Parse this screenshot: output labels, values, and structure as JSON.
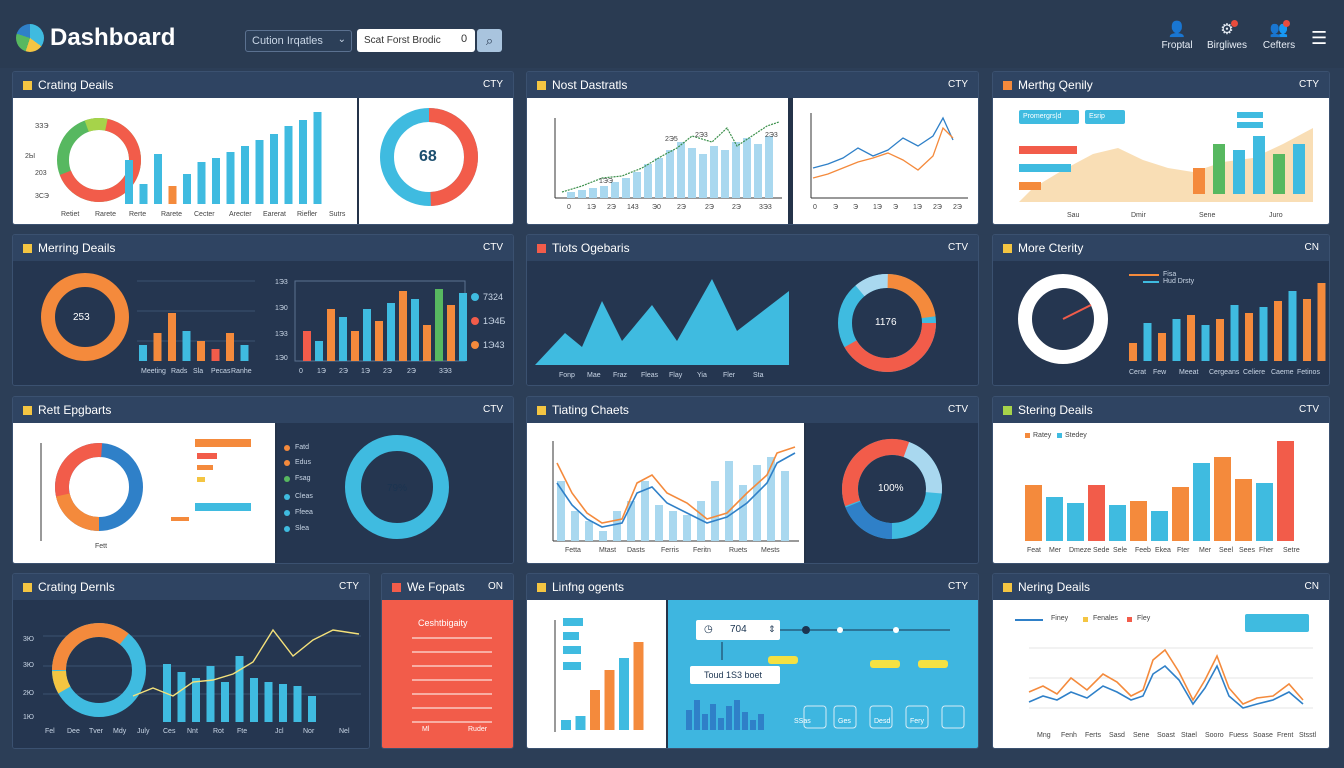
{
  "header": {
    "title": "Dashboard",
    "filter_label": "Cution Irqatles",
    "search_value": "Scat Forst Brodic",
    "search_count": "0",
    "items": [
      {
        "label": "Froptal",
        "icon": "user-icon"
      },
      {
        "label": "Birgliwes",
        "icon": "notifications-icon"
      },
      {
        "label": "Cefters",
        "icon": "people-icon"
      }
    ],
    "menu_icon": "menu-icon"
  },
  "panels": [
    {
      "title": "Crating Deails",
      "tag": "CTY",
      "accent": "#f4c542",
      "center": "68",
      "y_ticks": [
        "ЗЗЭ",
        "2Ы",
        "203",
        "3СЭ"
      ],
      "x_ticks": [
        "Retiet",
        "Rarete",
        "Rerte",
        "Rarete",
        "Cecter",
        "Arecter",
        "Earerat",
        "Riefler",
        "Sutrs"
      ]
    },
    {
      "title": "Nost Dastratls",
      "tag": "CTY",
      "accent": "#f4c542",
      "x_ticks": [
        "0",
        "1Э",
        "2Э",
        "143",
        "Э0",
        "2Э",
        "2Э",
        "2Э",
        "3Э3"
      ],
      "x_ticks2": [
        "0",
        "Э",
        "Э",
        "1Э",
        "Э",
        "1Э",
        "2Э",
        "2Э"
      ],
      "peaks": [
        "2Э5",
        "2Э3",
        "1ЭЭ",
        "2Э3"
      ]
    },
    {
      "title": "Merthg Qenily",
      "tag": "CTY",
      "accent": "#f48a3c",
      "legend": [
        "Promergrs|d",
        "Esrip"
      ],
      "x_ticks": [
        "Sau",
        "Dmir",
        "Sene",
        "Juro"
      ]
    },
    {
      "title": "Merring Deails",
      "tag": "CTV",
      "accent": "#f4c542",
      "center": "253",
      "x_ticks": [
        "Meeting",
        "Rads",
        "Sla",
        "Pecas",
        "Ranhe"
      ],
      "x_ticks2": [
        "0",
        "1Э",
        "2Э",
        "1Э",
        "2Э",
        "2Э",
        "3Э3"
      ],
      "y_ticks": [
        "1Э3",
        "1Э0",
        "1Э3",
        "1Э0"
      ],
      "right_vals": [
        "7324",
        "1Э4Б",
        "1Э43"
      ]
    },
    {
      "title": "Tiots Ogebaris",
      "tag": "CTV",
      "accent": "#f25c4a",
      "center": "1176",
      "x_ticks": [
        "Fonp",
        "Mae",
        "Fraz",
        "Fleas",
        "Flay",
        "Yia",
        "Fler",
        "Sta"
      ]
    },
    {
      "title": "More Cterity",
      "tag": "CN",
      "accent": "#f4c542",
      "legend": [
        "Fisa",
        "Hud Drsty"
      ],
      "x_ticks": [
        "Cerat",
        "Few",
        "Meeat",
        "Cergeans",
        "Celiere",
        "Caeme",
        "Fetinos"
      ]
    },
    {
      "title": "Rett Epgbarts",
      "tag": "CTV",
      "accent": "#f4c542",
      "center": "79%",
      "x_label": "Fett",
      "list": [
        "Fatd",
        "Edus",
        "Fsag",
        "Cleas",
        "Ffeea",
        "Slea"
      ]
    },
    {
      "title": "Tiating Chaets",
      "tag": "CTV",
      "accent": "#f4c542",
      "center": "100%",
      "x_ticks": [
        "Fetta",
        "Mtast",
        "Dasts",
        "Ferris",
        "Feritn",
        "Ruets",
        "Mests"
      ]
    },
    {
      "title": "Stering Deails",
      "tag": "CTV",
      "accent": "#a6d34a",
      "legend": [
        "Ratey",
        "Stedey"
      ],
      "x_ticks": [
        "Feat",
        "Mer",
        "Dmeze",
        "Sede",
        "Sele",
        "Feeb",
        "Ekea",
        "Fter",
        "Mer",
        "Seel",
        "Sees",
        "Fher",
        "Setre"
      ]
    },
    {
      "title": "Crating Dernls",
      "tag": "CTY",
      "accent": "#f4c542",
      "y_ticks": [
        "3Ю",
        "3Ю",
        "2Ю",
        "1Ю"
      ],
      "x_ticks": [
        "Fel",
        "Dee",
        "Tver",
        "Mdy",
        "July",
        "Ces",
        "Nnt",
        "Rot",
        "Fte",
        "Jcl",
        "Nor",
        "Nel"
      ]
    },
    {
      "title": "We Fopats",
      "tag": "ON",
      "accent": "#f25c4a",
      "subtitle": "Ceshtbigaity",
      "x_ticks": [
        "Ml",
        "Ruder"
      ]
    },
    {
      "title": "Linfng ogents",
      "tag": "CTY",
      "accent": "#f4c542",
      "counter": "704",
      "label_box": "Toud 1S3 boet",
      "x_ticks": [
        "SSas",
        "Ges",
        "Desd",
        "Fery"
      ]
    },
    {
      "title": "Nering Deails",
      "tag": "CN",
      "accent": "#f4c542",
      "legend": [
        "Finey",
        "Fenales",
        "Fley"
      ],
      "x_ticks": [
        "Mng",
        "Fenh",
        "Ferts",
        "Sasd",
        "Sene",
        "Soast",
        "Stael",
        "Sooro",
        "Fuess",
        "Soase",
        "Frent",
        "Stsstl"
      ]
    }
  ]
}
